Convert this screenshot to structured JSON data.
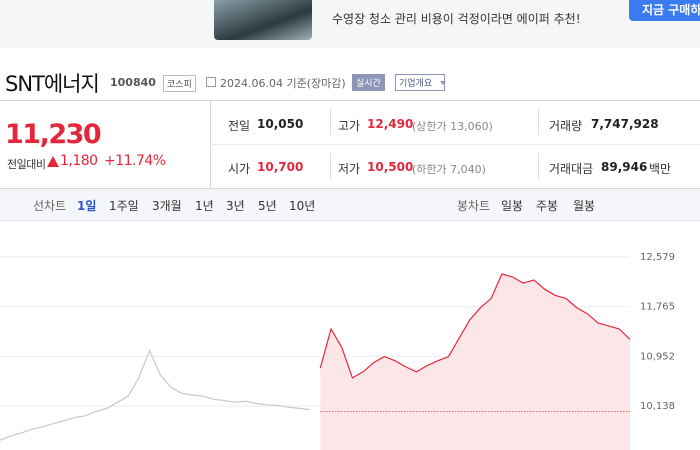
{
  "banner": {
    "text": "수영장 청소 관리 비용이 걱정이라면 에이퍼 추천!",
    "button": "지금 구매하"
  },
  "header": {
    "name": "SNT에너지",
    "code": "100840",
    "market": "코스피",
    "date": "2024.06.04 기준(장마감)",
    "realtime": "실시간",
    "overview": "기업개요"
  },
  "quote": {
    "price": "11,230",
    "change_label": "전일대비",
    "change": "1,180",
    "change_rate": "+11.74%",
    "items": [
      {
        "label": "전일",
        "value": "10,050"
      },
      {
        "label": "고가",
        "value": "12,490",
        "note": "(상한가 13,060)"
      },
      {
        "label": "거래량",
        "value": "7,747,928"
      },
      {
        "label": "시가",
        "value": "10,700"
      },
      {
        "label": "저가",
        "value": "10,500",
        "note": "(하한가 7,040)"
      },
      {
        "label": "거래대금",
        "value": "89,946",
        "unit": "백만"
      }
    ]
  },
  "tabs": {
    "line_label": "선차트",
    "line": [
      "1일",
      "1주일",
      "3개월",
      "1년",
      "3년",
      "5년",
      "10년"
    ],
    "candle_label": "봉차트",
    "candle": [
      "일봉",
      "주봉",
      "월봉"
    ]
  },
  "chart_data": {
    "type": "line",
    "categories": [
      null,
      null,
      null,
      null,
      null,
      null,
      null,
      null,
      null,
      null,
      null,
      null,
      null,
      null,
      null,
      null,
      null,
      null,
      null,
      null,
      null,
      null,
      null,
      null,
      null,
      null,
      null,
      null,
      null,
      null,
      null,
      null,
      null,
      null,
      null,
      null,
      null,
      null,
      null,
      null,
      null,
      null,
      null,
      null,
      null,
      null,
      null,
      null,
      null,
      null,
      null,
      null,
      null,
      null,
      null,
      null,
      null,
      null,
      null,
      null
    ],
    "series": [
      {
        "color": "#c8c8c8",
        "values": [
          9580,
          9650,
          9700,
          9760,
          9800,
          9850,
          9900,
          9950,
          9980,
          10050,
          10100,
          10200,
          10300,
          10600,
          11050,
          10650,
          10450,
          10350,
          10320,
          10300,
          10250,
          10230,
          10200,
          10220,
          10180,
          10160,
          10150,
          10120,
          10100,
          10080,
          null,
          null,
          null,
          null,
          null,
          null,
          null,
          null,
          null,
          null,
          null,
          null,
          null,
          null,
          null,
          null,
          null,
          null,
          null,
          null,
          null,
          null,
          null,
          null,
          null,
          null,
          null,
          null,
          null,
          null
        ]
      },
      {
        "color": "#e4273a",
        "area_color": "#fde6e8",
        "values": [
          null,
          null,
          null,
          null,
          null,
          null,
          null,
          null,
          null,
          null,
          null,
          null,
          null,
          null,
          null,
          null,
          null,
          null,
          null,
          null,
          null,
          null,
          null,
          null,
          null,
          null,
          null,
          null,
          null,
          null,
          10760,
          11400,
          11100,
          10600,
          10700,
          10850,
          10950,
          10880,
          10780,
          10700,
          10800,
          10880,
          10950,
          11250,
          11550,
          11750,
          11900,
          12300,
          12250,
          12150,
          12200,
          12050,
          11950,
          11900,
          11750,
          11650,
          11500,
          11450,
          11400,
          11230
        ]
      }
    ],
    "reference_line": 10050,
    "ylim": [
      9420,
      13150
    ],
    "yticks": [
      {
        "value": 12579,
        "label": "12,579"
      },
      {
        "value": 11765,
        "label": "11,765"
      },
      {
        "value": 10952,
        "label": "10,952"
      },
      {
        "value": 10138,
        "label": "10,138"
      }
    ],
    "grid": true
  }
}
